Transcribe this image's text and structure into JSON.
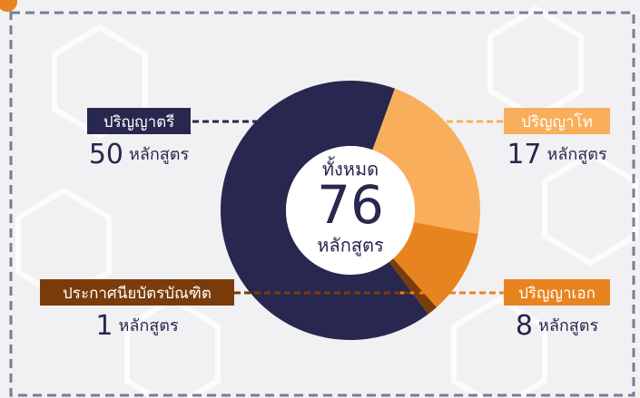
{
  "chart_data": {
    "type": "pie",
    "categories": [
      "ปริญญาโท",
      "ปริญญาเอก",
      "ประกาศนียบัตรบัณฑิต",
      "ปริญญาตรี"
    ],
    "values": [
      17,
      8,
      1,
      50
    ],
    "colors": [
      "#f9ae5b",
      "#e8841f",
      "#7a3c0a",
      "#27274f"
    ],
    "total_label": "ทั้งหมด",
    "total": 76,
    "unit": "หลักสูตร"
  }
}
